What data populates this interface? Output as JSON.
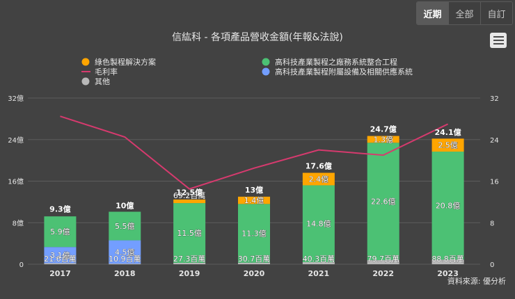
{
  "tabs": [
    "近期",
    "全部",
    "自訂"
  ],
  "menu_icon": "hamburger-menu-icon",
  "source": "資料來源: 優分析",
  "colors": {
    "green": "#4cc174",
    "orange": "#ffa500",
    "blue": "#739eff",
    "gray": "#b8b8b8",
    "line": "#d63a6e",
    "text": "#e6e6e6",
    "grid": "#5c5c5c"
  },
  "chart_data": {
    "type": "bar",
    "title": "信紘科 - 各項產品營收金額(年報&法說)",
    "categories": [
      "2017",
      "2018",
      "2019",
      "2020",
      "2021",
      "2022",
      "2023"
    ],
    "y_left": {
      "ticks": [
        "0",
        "8億",
        "16億",
        "24億",
        "32億"
      ],
      "range": [
        0,
        32
      ]
    },
    "y_right": {
      "ticks": [
        "0",
        "8",
        "16",
        "24",
        "32"
      ],
      "range": [
        0,
        32
      ]
    },
    "legend": [
      {
        "name": "綠色製程解決方案",
        "kind": "dot",
        "color_key": "orange"
      },
      {
        "name": "高科技產業製程之廠務系統整合工程",
        "kind": "dot",
        "color_key": "green"
      },
      {
        "name": "毛利率",
        "kind": "line",
        "color_key": "line"
      },
      {
        "name": "高科技產業製程附屬設備及相關供應系統",
        "kind": "dot",
        "color_key": "blue"
      },
      {
        "name": "其他",
        "kind": "dot",
        "color_key": "gray"
      }
    ],
    "series": [
      {
        "name": "其他",
        "color_key": "gray",
        "values": [
          0.216,
          0.109,
          0.273,
          0.307,
          0.403,
          0.797,
          0.888
        ],
        "labels": [
          "21.6百萬",
          "10.9百萬",
          "27.3百萬",
          "30.7百萬",
          "40.3百萬",
          "79.7百萬",
          "88.8百萬"
        ]
      },
      {
        "name": "高科技產業製程附屬設備及相關供應系統",
        "color_key": "blue",
        "values": [
          3.1,
          4.5,
          0,
          0,
          0,
          0,
          0
        ],
        "labels": [
          "3.1億",
          "4.5億",
          "",
          "",
          "",
          "",
          ""
        ]
      },
      {
        "name": "高科技產業製程之廠務系統整合工程",
        "color_key": "green",
        "values": [
          5.9,
          5.5,
          11.5,
          11.3,
          14.8,
          22.6,
          20.8
        ],
        "labels": [
          "5.9億",
          "5.5億",
          "11.5億",
          "11.3億",
          "14.8億",
          "22.6億",
          "20.8億"
        ]
      },
      {
        "name": "綠色製程解決方案",
        "color_key": "orange",
        "values": [
          0,
          0,
          0.692,
          1.4,
          2.4,
          1.3,
          2.5
        ],
        "labels": [
          "",
          "",
          "69.2百萬",
          "1.4億",
          "2.4億",
          "1.3億",
          "2.5億"
        ]
      }
    ],
    "totals": [
      9.3,
      10,
      12.5,
      13,
      17.6,
      24.7,
      24.1
    ],
    "total_labels": [
      "9.3億",
      "10億",
      "12.5億",
      "13億",
      "17.6億",
      "24.7億",
      "24.1億"
    ],
    "gross_margin": {
      "name": "毛利率",
      "values": [
        28.5,
        24.5,
        14.5,
        18.5,
        22,
        21,
        27
      ]
    }
  }
}
